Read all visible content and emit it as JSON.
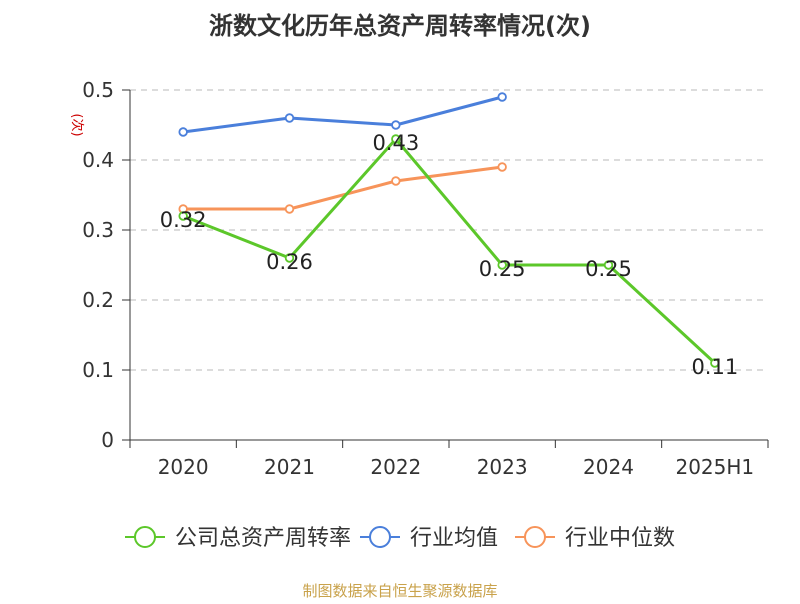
{
  "chart_data": {
    "type": "line",
    "title": "浙数文化历年总资产周转率情况(次)",
    "ylabel": "(次)",
    "categories": [
      "2020",
      "2021",
      "2022",
      "2023",
      "2024",
      "2025H1"
    ],
    "ylim": [
      0,
      0.5
    ],
    "yticks": [
      0,
      0.1,
      0.2,
      0.3,
      0.4,
      0.5
    ],
    "ytick_labels": [
      "0",
      "0.1",
      "0.2",
      "0.3",
      "0.4",
      "0.5"
    ],
    "grid": true,
    "legend_position": "bottom",
    "series": [
      {
        "name": "公司总资产周转率",
        "color": "#5cc72a",
        "values": [
          0.32,
          0.26,
          0.43,
          0.25,
          0.25,
          0.11
        ],
        "data_labels": [
          "0.32",
          "0.26",
          "0.43",
          "0.25",
          "0.25",
          "0.11"
        ]
      },
      {
        "name": "行业均值",
        "color": "#4a7fdb",
        "values": [
          0.44,
          0.46,
          0.45,
          0.49,
          null,
          null
        ]
      },
      {
        "name": "行业中位数",
        "color": "#f7945a",
        "values": [
          0.33,
          0.33,
          0.37,
          0.39,
          null,
          null
        ]
      }
    ]
  },
  "footer": {
    "source": "制图数据来自恒生聚源数据库",
    "color": "#c9a24b"
  }
}
